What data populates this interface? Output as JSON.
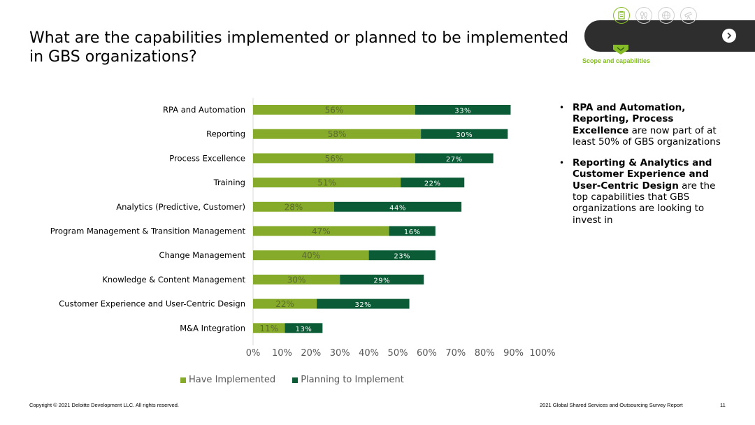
{
  "page": {
    "title": "What are the capabilities implemented or planned to be implemented in GBS organizations?",
    "section_label": "Scope and capabilities"
  },
  "nav": {
    "icons": [
      "clipboard-icon",
      "footprints-icon",
      "globe-icon",
      "telescope-icon"
    ],
    "active_icon": "clipboard-icon",
    "next_icon": "chevron-right-icon"
  },
  "colors": {
    "have": "#86ab2a",
    "plan": "#0b5c36",
    "accent": "#86bc25",
    "nav_bg": "#2e2e2e"
  },
  "chart_data": {
    "type": "bar",
    "orientation": "horizontal",
    "stacked": true,
    "categories": [
      "RPA and Automation",
      "Reporting",
      "Process Excellence",
      "Training",
      "Analytics (Predictive, Customer)",
      "Program Management & Transition Management",
      "Change Management",
      "Knowledge & Content Management",
      "Customer Experience and User-Centric Design",
      "M&A Integration"
    ],
    "series": [
      {
        "name": "Have Implemented",
        "values": [
          56,
          58,
          56,
          51,
          28,
          47,
          40,
          30,
          22,
          11
        ]
      },
      {
        "name": "Planning to Implement",
        "values": [
          33,
          30,
          27,
          22,
          44,
          16,
          23,
          29,
          32,
          13
        ]
      }
    ],
    "xlim": [
      0,
      100
    ],
    "xticks": [
      "0%",
      "10%",
      "20%",
      "30%",
      "40%",
      "50%",
      "60%",
      "70%",
      "80%",
      "90%",
      "100%"
    ],
    "legend_position": "bottom",
    "grid": false
  },
  "legend": {
    "have_label": "Have Implemented",
    "plan_label": "Planning to Implement"
  },
  "bullets": [
    {
      "bold": "RPA and Automation, Reporting, Process Excellence",
      "text": " are now part of at least 50% of GBS organizations"
    },
    {
      "bold": "Reporting & Analytics and Customer Experience and User-Centric Design",
      "text": " are the top capabilities that GBS organizations are looking to invest in"
    }
  ],
  "footer": {
    "copyright": "Copyright © 2021 Deloitte Development LLC. All rights reserved.",
    "report": "2021 Global Shared Services and Outsourcing Survey Report",
    "page_number": "11"
  }
}
